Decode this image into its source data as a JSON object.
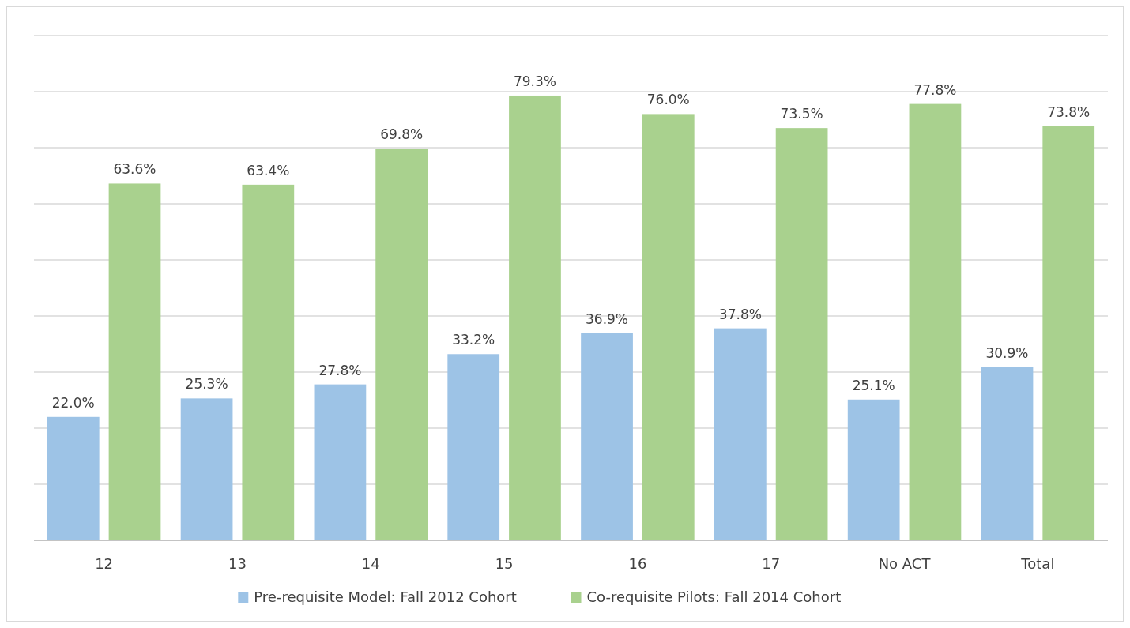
{
  "chart_data": {
    "type": "bar",
    "categories": [
      "12",
      "13",
      "14",
      "15",
      "16",
      "17",
      "No ACT",
      "Total"
    ],
    "series": [
      {
        "name": "Pre-requisite Model: Fall 2012 Cohort",
        "color": "#9dc3e6",
        "values": [
          22.0,
          25.3,
          27.8,
          33.2,
          36.9,
          37.8,
          25.1,
          30.9
        ],
        "value_labels": [
          "22.0%",
          "25.3%",
          "27.8%",
          "33.2%",
          "36.9%",
          "37.8%",
          "25.1%",
          "30.9%"
        ]
      },
      {
        "name": "Co-requisite Pilots: Fall 2014 Cohort",
        "color": "#a9d18e",
        "values": [
          63.6,
          63.4,
          69.8,
          79.3,
          76.0,
          73.5,
          77.8,
          73.8
        ],
        "value_labels": [
          "63.6%",
          "63.4%",
          "69.8%",
          "79.3%",
          "76.0%",
          "73.5%",
          "77.8%",
          "73.8%"
        ]
      }
    ],
    "ylim": [
      0,
      90
    ],
    "yticks": [
      {
        "value": 0,
        "label": null
      },
      {
        "value": 10,
        "label": null
      },
      {
        "value": 20,
        "label": null
      },
      {
        "value": 30,
        "label": null
      },
      {
        "value": 40,
        "label": null
      },
      {
        "value": 50,
        "label": null
      },
      {
        "value": 60,
        "label": null
      },
      {
        "value": 70,
        "label": null
      },
      {
        "value": 80,
        "label": null
      },
      {
        "value": 90,
        "label": null
      }
    ],
    "tick_labels": "x",
    "grid": "y",
    "legend": "bottom"
  }
}
